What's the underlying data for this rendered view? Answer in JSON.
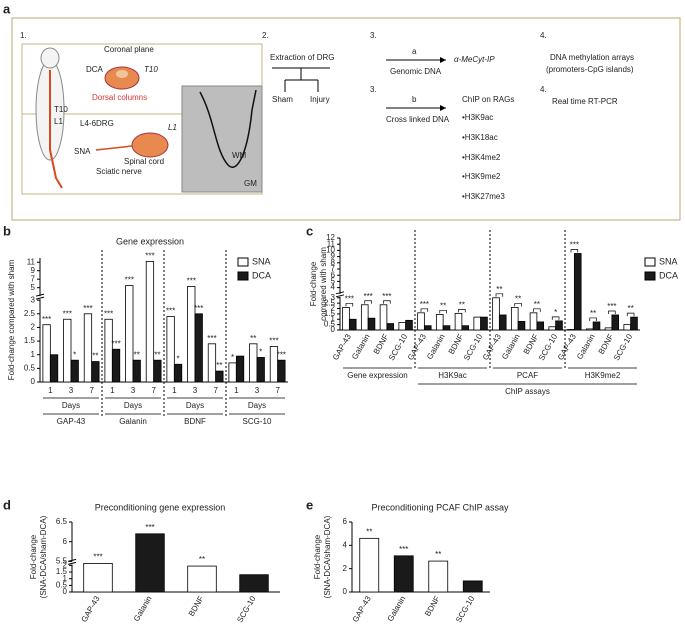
{
  "panel_a": {
    "letter": "a",
    "labels": [
      "1.",
      "Coronal plane",
      "DCA",
      "T10",
      "Dorsal columns",
      "T10",
      "L1",
      "L4-6DRG",
      "L1",
      "SNA",
      "Spinal cord",
      "Sciatic nerve",
      "WM",
      "GM",
      "2.",
      "Extraction of DRG",
      "Sham",
      "Injury",
      "3.",
      "a",
      "Genomic DNA",
      "α-MeCyt-IP",
      "4.",
      "DNA methylation arrays",
      "(promoters-CpG islands)",
      "3.",
      "b",
      "Cross linked DNA",
      "ChIP on RAGs",
      "•H3K9ac",
      "•H3K18ac",
      "•H3K4me2",
      "•H3K9me2",
      "•H3K27me3",
      "4.",
      "Real time RT-PCR"
    ]
  },
  "chart_data": [
    {
      "type": "bar",
      "panel": "b",
      "title": "Gene expression",
      "ylabel": "Fold-change compared with sham",
      "categories": [
        "1",
        "3",
        "7",
        "1",
        "3",
        "7",
        "1",
        "3",
        "7",
        "1",
        "3",
        "7"
      ],
      "x_sub_labels": [
        "Days",
        "Days",
        "Days",
        "Days"
      ],
      "x_group_labels": [
        "GAP-43",
        "Galanin",
        "BDNF",
        "SCG-10"
      ],
      "series": [
        {
          "name": "SNA",
          "color": "#ffffff",
          "values": [
            2.1,
            2.3,
            2.5,
            2.3,
            5.5,
            11.2,
            2.4,
            5.3,
            1.4,
            0.7,
            1.4,
            1.3
          ],
          "annotations": [
            "***",
            "***",
            "***",
            "***",
            "***",
            "***",
            "***",
            "***",
            "***",
            "*",
            "**",
            "***"
          ]
        },
        {
          "name": "DCA",
          "color": "#1a1a1a",
          "values": [
            1.0,
            0.8,
            0.75,
            1.2,
            0.8,
            0.8,
            0.65,
            2.5,
            0.4,
            0.95,
            0.9,
            0.8
          ],
          "annotations": [
            null,
            "*",
            "**",
            "***",
            "**",
            "**",
            "*",
            "***",
            "**",
            null,
            "*",
            "***"
          ]
        }
      ],
      "ylim": [
        0,
        12
      ],
      "ybreak": [
        3,
        3
      ],
      "yticks": [
        0,
        0.5,
        1,
        1.5,
        2,
        2.5,
        3,
        5,
        7,
        9,
        11
      ]
    },
    {
      "type": "bar",
      "panel": "c",
      "ylabel": [
        "Fold-change",
        "compared with sham"
      ],
      "categories": [
        "GAP-43",
        "Galanin",
        "BDNF",
        "SCG-10",
        "GAP-43",
        "Galanin",
        "BDNF",
        "SCG-10",
        "GAP-43",
        "Galanin",
        "BDNF",
        "SCG-10",
        "GAP-43",
        "Galanin",
        "BDNF",
        "SCG-10"
      ],
      "x_group_labels": [
        "Gene expression",
        "H3K9ac",
        "PCAF",
        "H3K9me2"
      ],
      "x_super_label": "ChIP assays",
      "series": [
        {
          "name": "SNA",
          "color": "#ffffff",
          "values": [
            2.1,
            2.35,
            2.35,
            0.7,
            1.6,
            1.45,
            1.55,
            1.2,
            3.0,
            2.1,
            1.6,
            0.3,
            0.05,
            0.1,
            0.2,
            0.5
          ]
        },
        {
          "name": "DCA",
          "color": "#1a1a1a",
          "values": [
            1.0,
            1.1,
            0.6,
            0.9,
            0.4,
            0.4,
            0.4,
            1.2,
            1.4,
            0.8,
            0.75,
            0.85,
            9.5,
            0.75,
            1.4,
            1.2
          ]
        }
      ],
      "annotations": [
        "***",
        "***",
        "***",
        null,
        "***",
        "**",
        "**",
        null,
        "**",
        "**",
        "**",
        "*",
        "***",
        "**",
        "***",
        "**"
      ],
      "ylim": [
        0,
        12
      ],
      "ybreak": [
        3,
        3
      ],
      "yticks": [
        0,
        0.5,
        1,
        1.5,
        2,
        2.5,
        3,
        4,
        5,
        6,
        7,
        8,
        9,
        10,
        11,
        12
      ]
    },
    {
      "type": "bar",
      "panel": "d",
      "title": "Preconditioning gene expression",
      "ylabel": [
        "Fold-change",
        "(SNA-DCA/sham-DCA)"
      ],
      "categories": [
        "GAP-43",
        "Galanin",
        "BDNF",
        "SCG-10"
      ],
      "values": [
        2.2,
        6.2,
        1.95,
        1.3
      ],
      "colors": [
        "#ffffff",
        "#1a1a1a",
        "#ffffff",
        "#1a1a1a"
      ],
      "annotations": [
        "***",
        "***",
        "**",
        null
      ],
      "ylim": [
        0,
        6.5
      ],
      "ybreak": [
        2,
        5.5
      ],
      "yticks": [
        0,
        0.5,
        1,
        1.5,
        2,
        5.5,
        6,
        6.5
      ]
    },
    {
      "type": "bar",
      "panel": "e",
      "title": "Preconditioning PCAF ChIP assay",
      "ylabel": [
        "Fold-change",
        "(SNA-DCA/sham-DCA)"
      ],
      "categories": [
        "GAP-43",
        "Galanin",
        "BDNF",
        "SCG-10"
      ],
      "values": [
        4.6,
        3.1,
        2.65,
        0.95
      ],
      "colors": [
        "#ffffff",
        "#1a1a1a",
        "#ffffff",
        "#1a1a1a"
      ],
      "annotations": [
        "**",
        "***",
        "**",
        null
      ],
      "ylim": [
        0,
        6
      ],
      "yticks": [
        0,
        2,
        4,
        6
      ]
    }
  ]
}
